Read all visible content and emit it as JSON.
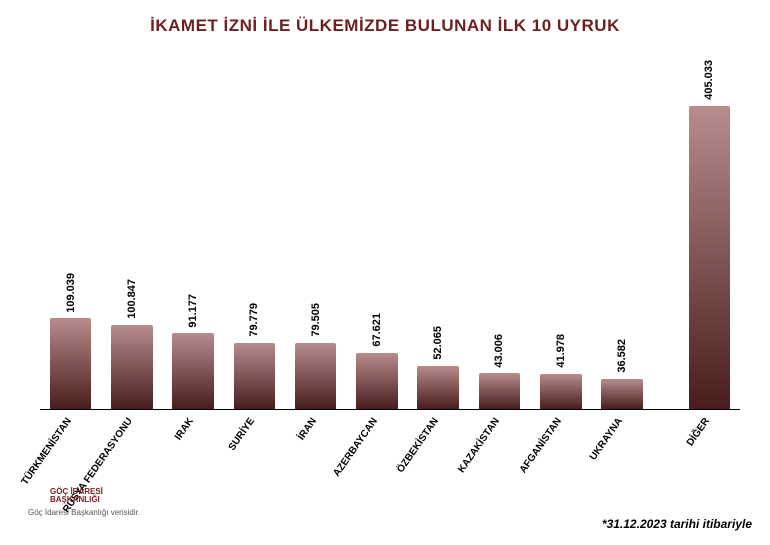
{
  "chart": {
    "type": "bar",
    "title": "İKAMET İZNİ İLE ÜLKEMİZDE BULUNAN İLK 10 UYRUK",
    "title_color": "#6d1f1f",
    "title_fontsize": 17,
    "background_color": "#ffffff",
    "bar_gradient_top": "#b88c8c",
    "bar_gradient_bottom": "#4a1d1d",
    "bar_width_pct": 78,
    "y_max": 420000,
    "gap_before_index": 10,
    "categories": [
      "TÜRKMENİSTAN",
      "RUSYA FEDERASYONU",
      "IRAK",
      "SURİYE",
      "İRAN",
      "AZERBAYCAN",
      "ÖZBEKİSTAN",
      "KAZAKİSTAN",
      "AFGANİSTAN",
      "UKRAYNA",
      "DİĞER"
    ],
    "values": [
      109039,
      100847,
      91177,
      79779,
      79505,
      67621,
      52065,
      43006,
      41978,
      36582,
      405033
    ],
    "value_labels": [
      "109.039",
      "100.847",
      "91.177",
      "79.779",
      "79.505",
      "67.621",
      "52.065",
      "43.006",
      "41.978",
      "36.582",
      "405.033"
    ],
    "label_fontsize": 10,
    "label_rotation_deg": -55
  },
  "footnote": "*31.12.2023 tarihi itibariyle",
  "source": "Göç İdaresi Başkanlığı verisidir.",
  "logo": {
    "mark_color": "#c73636",
    "text_line1": "GÖÇ İDARESİ",
    "text_line2": "BAŞKANLIĞI"
  }
}
